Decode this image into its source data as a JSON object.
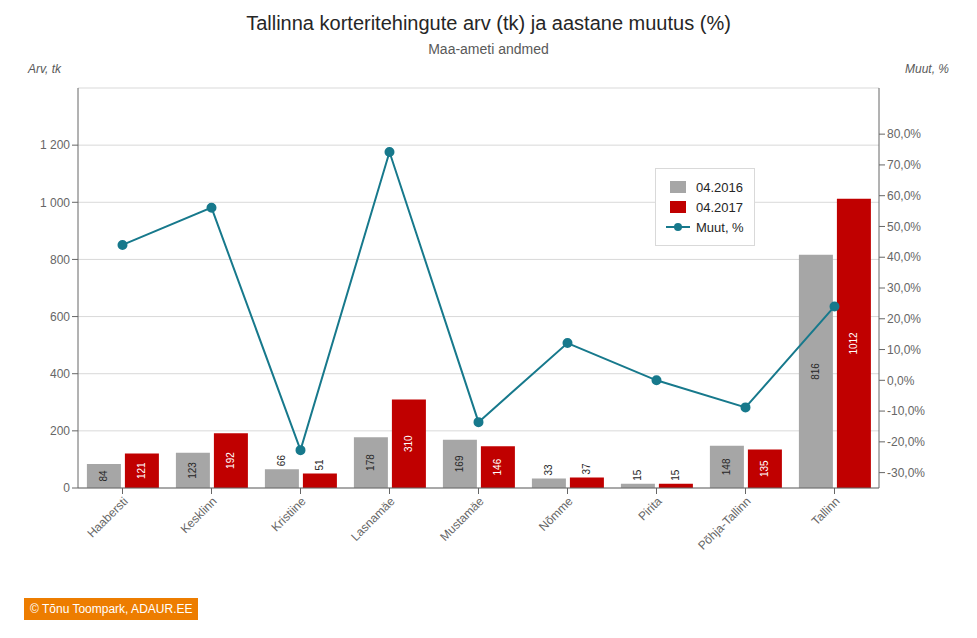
{
  "chart_data": {
    "type": "bar",
    "title": "Tallinna korteritehingute arv (tk) ja aastane muutus (%)",
    "subtitle": "Maa-ameti andmed",
    "ylabel": "Arv, tk",
    "y2label": "Muut, %",
    "annotations": [
      "© Tõnu Toompark, ADAUR.EE"
    ],
    "categories": [
      "Haabersti",
      "Kesklinn",
      "Kristiine",
      "Lasnamäe",
      "Mustamäe",
      "Nõmme",
      "Pirita",
      "Põhja-Tallinn",
      "Tallinn"
    ],
    "series": [
      {
        "name": "04.2016",
        "color": "#a6a6a6",
        "values": [
          84,
          123,
          66,
          178,
          169,
          33,
          15,
          148,
          816
        ],
        "data_labels": true
      },
      {
        "name": "04.2017",
        "color": "#c00000",
        "values": [
          121,
          192,
          51,
          310,
          146,
          37,
          15,
          135,
          1012
        ],
        "data_labels": true
      },
      {
        "name": "Muut, %",
        "type": "line",
        "axis": "y2",
        "color": "#17798c",
        "marker": "o",
        "values": [
          44.0,
          56.1,
          -22.7,
          74.2,
          -13.6,
          12.1,
          0.0,
          -8.8,
          24.0
        ]
      }
    ],
    "ylim": [
      0,
      1400
    ],
    "yticks": [
      0,
      200,
      400,
      600,
      800,
      {
        "value": 1000,
        "label": "1 000"
      },
      {
        "value": 1200,
        "label": "1 200"
      }
    ],
    "y2lim": [
      -35,
      95
    ],
    "y2ticks": [
      {
        "value": -30,
        "label": "-30,0%"
      },
      {
        "value": -20,
        "label": "-20,0%"
      },
      {
        "value": -10,
        "label": "-10,0%"
      },
      {
        "value": 0,
        "label": "0,0%"
      },
      {
        "value": 10,
        "label": "10,0%"
      },
      {
        "value": 20,
        "label": "20,0%"
      },
      {
        "value": 30,
        "label": "30,0%"
      },
      {
        "value": 40,
        "label": "40,0%"
      },
      {
        "value": 50,
        "label": "50,0%"
      },
      {
        "value": 60,
        "label": "60,0%"
      },
      {
        "value": 70,
        "label": "70,0%"
      },
      {
        "value": 80,
        "label": "80,0%"
      }
    ],
    "grid": true,
    "legend": "upper right"
  }
}
